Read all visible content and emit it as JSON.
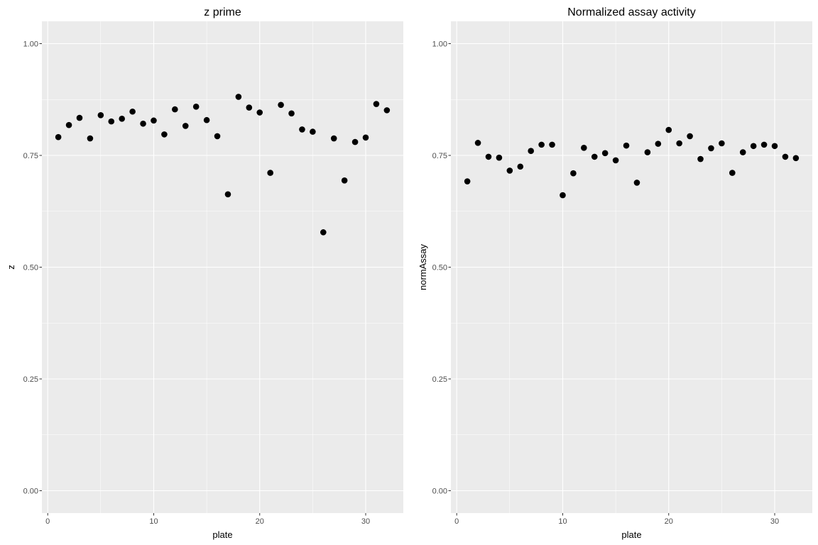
{
  "chart_data": [
    {
      "type": "scatter",
      "title": "z prime",
      "xlabel": "plate",
      "ylabel": "z",
      "xlim": [
        -0.55,
        33.55
      ],
      "ylim": [
        -0.05,
        1.05
      ],
      "x_ticks": [
        0,
        10,
        20,
        30
      ],
      "x_tick_labels": [
        "0",
        "10",
        "20",
        "30"
      ],
      "y_ticks": [
        0,
        0.25,
        0.5,
        0.75,
        1.0
      ],
      "y_tick_labels": [
        "0.00",
        "0.25",
        "0.50",
        "0.75",
        "1.00"
      ],
      "grid": true,
      "background_color": "#ebebeb",
      "grid_color": "#ffffff",
      "point_color": "#000000",
      "x": [
        1,
        2,
        3,
        4,
        5,
        6,
        7,
        8,
        9,
        10,
        11,
        12,
        13,
        14,
        15,
        16,
        17,
        18,
        19,
        20,
        21,
        22,
        23,
        24,
        25,
        26,
        27,
        28,
        29,
        30,
        31,
        32
      ],
      "y": [
        0.791,
        0.818,
        0.834,
        0.788,
        0.84,
        0.826,
        0.832,
        0.848,
        0.821,
        0.828,
        0.797,
        0.853,
        0.816,
        0.859,
        0.829,
        0.793,
        0.663,
        0.881,
        0.857,
        0.846,
        0.711,
        0.863,
        0.844,
        0.808,
        0.803,
        0.578,
        0.788,
        0.694,
        0.78,
        0.79,
        0.865,
        0.851
      ]
    },
    {
      "type": "scatter",
      "title": "Normalized assay activity",
      "xlabel": "plate",
      "ylabel": "normAssay",
      "xlim": [
        -0.55,
        33.55
      ],
      "ylim": [
        -0.05,
        1.05
      ],
      "x_ticks": [
        0,
        10,
        20,
        30
      ],
      "x_tick_labels": [
        "0",
        "10",
        "20",
        "30"
      ],
      "y_ticks": [
        0,
        0.25,
        0.5,
        0.75,
        1.0
      ],
      "y_tick_labels": [
        "0.00",
        "0.25",
        "0.50",
        "0.75",
        "1.00"
      ],
      "grid": true,
      "background_color": "#ebebeb",
      "grid_color": "#ffffff",
      "point_color": "#000000",
      "x": [
        1,
        2,
        3,
        4,
        5,
        6,
        7,
        8,
        9,
        10,
        11,
        12,
        13,
        14,
        15,
        16,
        17,
        18,
        19,
        20,
        21,
        22,
        23,
        24,
        25,
        26,
        27,
        28,
        29,
        30,
        31,
        32
      ],
      "y": [
        0.692,
        0.778,
        0.747,
        0.745,
        0.716,
        0.725,
        0.76,
        0.774,
        0.774,
        0.661,
        0.71,
        0.767,
        0.747,
        0.755,
        0.739,
        0.772,
        0.689,
        0.757,
        0.776,
        0.807,
        0.777,
        0.793,
        0.742,
        0.766,
        0.777,
        0.711,
        0.757,
        0.771,
        0.774,
        0.771,
        0.747,
        0.744
      ]
    }
  ]
}
